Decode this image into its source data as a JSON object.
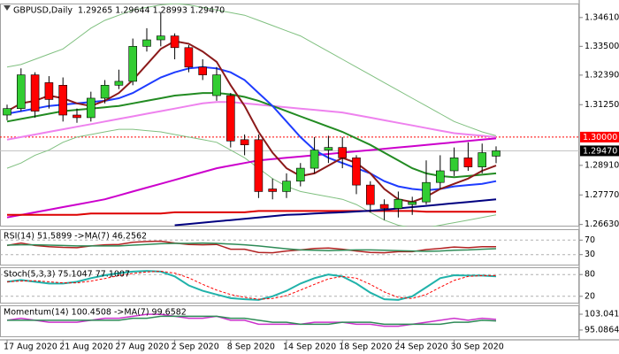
{
  "chart_data": [
    {
      "type": "candlestick",
      "title": "GBPUSD,Daily  1.29265 1.29644 1.28993 1.29470",
      "categories": [
        "17 Aug 2020",
        null,
        null,
        null,
        "21 Aug 2020",
        null,
        null,
        null,
        "27 Aug 2020",
        null,
        null,
        null,
        "2 Sep 2020",
        null,
        null,
        null,
        "8 Sep 2020",
        null,
        null,
        null,
        "14 Sep 2020",
        null,
        null,
        null,
        "18 Sep 2020",
        null,
        null,
        null,
        "24 Sep 2020",
        null,
        null,
        null,
        "30 Sep 2020",
        null,
        null,
        null
      ],
      "open": [
        1.3085,
        1.311,
        1.324,
        1.321,
        1.32,
        1.3085,
        1.3075,
        1.315,
        1.32,
        1.3215,
        1.335,
        1.3375,
        1.339,
        1.3345,
        1.327,
        1.316,
        1.316,
        1.299,
        1.299,
        1.28,
        1.279,
        1.283,
        1.288,
        1.295,
        1.296,
        1.292,
        1.2815,
        1.274,
        1.2725,
        1.274,
        1.275,
        1.2825,
        1.287,
        1.292,
        1.2885,
        1.29265
      ],
      "high": [
        1.3125,
        1.3265,
        1.325,
        1.3235,
        1.323,
        1.311,
        1.3175,
        1.322,
        1.326,
        1.338,
        1.342,
        1.3482,
        1.34,
        1.3355,
        1.33,
        1.327,
        1.317,
        1.301,
        1.301,
        1.284,
        1.286,
        1.29,
        1.3,
        1.3005,
        1.3,
        1.293,
        1.283,
        1.276,
        1.279,
        1.277,
        1.291,
        1.293,
        1.296,
        1.298,
        1.2975,
        1.29644
      ],
      "low": [
        1.3065,
        1.31,
        1.3075,
        1.311,
        1.306,
        1.3055,
        1.306,
        1.313,
        1.3185,
        1.32,
        1.333,
        1.335,
        1.33,
        1.325,
        1.322,
        1.314,
        1.296,
        1.293,
        1.2765,
        1.276,
        1.2765,
        1.281,
        1.286,
        1.29,
        1.288,
        1.278,
        1.271,
        1.268,
        1.269,
        1.27,
        1.274,
        1.28,
        1.285,
        1.287,
        1.286,
        1.28993
      ],
      "close": [
        1.311,
        1.324,
        1.31,
        1.3145,
        1.3085,
        1.3075,
        1.315,
        1.32,
        1.3215,
        1.335,
        1.3375,
        1.339,
        1.3345,
        1.327,
        1.324,
        1.324,
        1.2985,
        1.297,
        1.279,
        1.279,
        1.283,
        1.288,
        1.295,
        1.296,
        1.292,
        1.2815,
        1.274,
        1.2725,
        1.276,
        1.275,
        1.2825,
        1.287,
        1.292,
        1.2885,
        1.294,
        1.2947
      ],
      "up_color": "#32cd32",
      "down_color": "#ff0000",
      "wick_color": "#000000",
      "series": [
        {
          "color": "#80c080",
          "width": 1,
          "values": [
            1.327,
            1.328,
            1.33,
            1.332,
            1.334,
            1.338,
            1.342,
            1.345,
            1.347,
            1.349,
            1.35,
            1.351,
            1.3515,
            1.351,
            1.35,
            1.349,
            1.348,
            1.347,
            1.345,
            1.343,
            1.341,
            1.339,
            1.336,
            1.333,
            1.33,
            1.327,
            1.324,
            1.321,
            1.318,
            1.315,
            1.312,
            1.309,
            1.306,
            1.304,
            1.302,
            1.3005
          ]
        },
        {
          "color": "#80c080",
          "width": 1,
          "values": [
            1.288,
            1.29,
            1.293,
            1.295,
            1.298,
            1.3,
            1.301,
            1.302,
            1.303,
            1.303,
            1.3025,
            1.302,
            1.301,
            1.3,
            1.299,
            1.298,
            1.295,
            1.292,
            1.288,
            1.284,
            1.281,
            1.279,
            1.278,
            1.277,
            1.276,
            1.274,
            1.271,
            1.268,
            1.266,
            1.265,
            1.265,
            1.266,
            1.267,
            1.268,
            1.269,
            1.27
          ]
        },
        {
          "color": "#ee82ee",
          "width": 2,
          "values": [
            1.299,
            1.3,
            1.301,
            1.302,
            1.303,
            1.304,
            1.305,
            1.306,
            1.307,
            1.308,
            1.309,
            1.31,
            1.311,
            1.312,
            1.313,
            1.3135,
            1.3135,
            1.313,
            1.3125,
            1.312,
            1.3115,
            1.311,
            1.3105,
            1.31,
            1.3095,
            1.3085,
            1.3075,
            1.3065,
            1.3055,
            1.3045,
            1.3035,
            1.3025,
            1.3015,
            1.301,
            1.3005,
            1.3
          ]
        },
        {
          "color": "#cc00cc",
          "width": 2,
          "values": [
            1.269,
            1.27,
            1.271,
            1.272,
            1.273,
            1.274,
            1.275,
            1.276,
            1.2775,
            1.279,
            1.2805,
            1.282,
            1.2835,
            1.285,
            1.2865,
            1.288,
            1.289,
            1.29,
            1.291,
            1.2915,
            1.292,
            1.2925,
            1.293,
            1.2935,
            1.294,
            1.2945,
            1.295,
            1.2955,
            1.296,
            1.2965,
            1.297,
            1.2975,
            1.298,
            1.2985,
            1.299,
            1.2995
          ]
        },
        {
          "color": "#dd0000",
          "width": 2,
          "values": [
            1.27,
            1.27,
            1.27,
            1.27,
            1.27,
            1.27,
            1.2705,
            1.2705,
            1.2705,
            1.2705,
            1.2705,
            1.2705,
            1.271,
            1.271,
            1.271,
            1.271,
            1.271,
            1.271,
            1.2715,
            1.2715,
            1.2715,
            1.2715,
            1.2715,
            1.2715,
            1.2715,
            1.2715,
            1.2715,
            1.2715,
            1.2715,
            1.2715,
            1.2712,
            1.2712,
            1.2712,
            1.2712,
            1.2712,
            1.2712
          ]
        },
        {
          "color": "#000080",
          "width": 2,
          "values": [
            null,
            null,
            null,
            null,
            null,
            null,
            null,
            null,
            null,
            null,
            null,
            null,
            1.266,
            1.2665,
            1.267,
            1.2675,
            1.268,
            1.2685,
            1.269,
            1.2695,
            1.27,
            1.2702,
            1.2705,
            1.2708,
            1.271,
            1.2713,
            1.2716,
            1.272,
            1.2725,
            1.273,
            1.2735,
            1.274,
            1.2745,
            1.275,
            1.2755,
            1.276
          ]
        },
        {
          "color": "#228b22",
          "width": 2,
          "values": [
            1.306,
            1.307,
            1.308,
            1.309,
            1.31,
            1.3105,
            1.311,
            1.3115,
            1.312,
            1.313,
            1.314,
            1.315,
            1.316,
            1.3165,
            1.317,
            1.317,
            1.3165,
            1.3155,
            1.314,
            1.312,
            1.31,
            1.308,
            1.306,
            1.304,
            1.302,
            1.2995,
            1.297,
            1.294,
            1.291,
            1.288,
            1.286,
            1.285,
            1.2845,
            1.285,
            1.2855,
            1.286
          ]
        },
        {
          "color": "#1e3cff",
          "width": 2,
          "values": [
            1.309,
            1.31,
            1.311,
            1.312,
            1.3125,
            1.313,
            1.3135,
            1.314,
            1.315,
            1.317,
            1.32,
            1.323,
            1.325,
            1.3265,
            1.327,
            1.3265,
            1.325,
            1.322,
            1.317,
            1.312,
            1.306,
            1.3,
            1.295,
            1.292,
            1.29,
            1.288,
            1.286,
            1.283,
            1.281,
            1.28,
            1.2795,
            1.28,
            1.281,
            1.2815,
            1.282,
            1.283
          ]
        },
        {
          "color": "#8b1a1a",
          "width": 2,
          "values": [
            1.31,
            1.313,
            1.314,
            1.316,
            1.315,
            1.313,
            1.312,
            1.314,
            1.317,
            1.322,
            1.328,
            1.334,
            1.337,
            1.336,
            1.333,
            1.329,
            1.32,
            1.312,
            1.302,
            1.294,
            1.288,
            1.285,
            1.286,
            1.289,
            1.292,
            1.29,
            1.286,
            1.28,
            1.276,
            1.275,
            1.277,
            1.28,
            1.282,
            1.284,
            1.287,
            1.289
          ]
        }
      ],
      "levels": [
        {
          "value": 1.3,
          "label": "1.30000",
          "color": "#ff0000",
          "line_color": "#ff0000",
          "dashed": true
        },
        {
          "value": 1.2947,
          "label": "1.29470",
          "color": "#000000",
          "line_color": "#c0c0c0",
          "dashed": false
        }
      ],
      "ylim": [
        1.2655,
        1.3515
      ],
      "yticks": [
        {
          "value": 1.3461,
          "label": "1.34610"
        },
        {
          "value": 1.335,
          "label": "1.33500"
        },
        {
          "value": 1.3239,
          "label": "1.32390"
        },
        {
          "value": 1.3125,
          "label": "1.31250"
        },
        {
          "value": 1.2891,
          "label": "1.28910"
        },
        {
          "value": 1.2777,
          "label": "1.27770"
        },
        {
          "value": 1.2663,
          "label": "1.26630"
        }
      ],
      "grid": false
    },
    {
      "type": "line",
      "title": "RSI(14) 51.5899 ->MA(7) 46.2562",
      "series": [
        {
          "color": "#b22222",
          "width": 1.5,
          "dashed": false,
          "values": [
            55,
            62,
            55,
            52,
            50,
            49,
            54,
            57,
            58,
            64,
            66,
            67,
            62,
            58,
            57,
            58,
            45,
            45,
            36,
            35,
            40,
            43,
            47,
            48,
            45,
            40,
            36,
            35,
            38,
            38,
            44,
            47,
            51,
            49,
            52,
            51.5899
          ]
        },
        {
          "color": "#2e8b57",
          "width": 1.5,
          "dashed": false,
          "values": [
            56,
            57,
            57,
            56,
            55,
            54,
            54,
            54,
            54,
            56,
            58,
            60,
            61,
            61,
            62,
            61,
            59,
            57,
            54,
            50,
            46,
            43,
            42,
            41,
            42,
            43,
            43,
            42,
            41,
            40,
            39,
            40,
            42,
            43,
            45,
            46.2562
          ]
        }
      ],
      "ylim": [
        0,
        100
      ],
      "yticks": [
        70,
        30
      ],
      "grid": true
    },
    {
      "type": "line",
      "title": "Stoch(5,3,3) 75.1047 77.1007",
      "series": [
        {
          "color": "#20b2aa",
          "width": 2,
          "dashed": false,
          "values": [
            60,
            65,
            60,
            55,
            55,
            60,
            70,
            78,
            84,
            88,
            90,
            88,
            75,
            50,
            35,
            25,
            15,
            12,
            10,
            20,
            35,
            55,
            70,
            80,
            75,
            55,
            30,
            12,
            10,
            20,
            45,
            70,
            78,
            77,
            77,
            75.1047
          ]
        },
        {
          "color": "#ff0000",
          "width": 1,
          "dashed": true,
          "values": [
            60,
            62,
            63,
            60,
            57,
            57,
            62,
            69,
            77,
            83,
            87,
            89,
            84,
            71,
            53,
            37,
            25,
            17,
            12,
            14,
            22,
            37,
            53,
            68,
            75,
            70,
            53,
            32,
            17,
            14,
            25,
            45,
            64,
            75,
            77,
            77.1007
          ]
        }
      ],
      "ylim": [
        0,
        100
      ],
      "yticks": [
        80,
        20
      ],
      "grid": true
    },
    {
      "type": "line",
      "title": "Momentum(14) 100.4508 ->MA(7) 99.6582",
      "series": [
        {
          "color": "#cc33cc",
          "width": 1.5,
          "dashed": false,
          "values": [
            100,
            101,
            100,
            99,
            99,
            99,
            100,
            101,
            101,
            102,
            103,
            103,
            102,
            101,
            101,
            102,
            100,
            100,
            98,
            98,
            98,
            98,
            99,
            99,
            99,
            98,
            98,
            97,
            97,
            98,
            99,
            100,
            101,
            100,
            101,
            100.4508
          ]
        },
        {
          "color": "#2e8b57",
          "width": 1.5,
          "dashed": false,
          "values": [
            100,
            100,
            100,
            100,
            100,
            100,
            100,
            100,
            100,
            101,
            101,
            102,
            102,
            102,
            102,
            102,
            101,
            101,
            100,
            99,
            99,
            98,
            98,
            98,
            99,
            99,
            99,
            98,
            98,
            98,
            98,
            98,
            99,
            99,
            100,
            99.6582
          ]
        }
      ],
      "ylim": [
        91.5,
        107.5
      ],
      "yticks": [
        103.0417,
        95.0864
      ],
      "grid": false
    }
  ]
}
